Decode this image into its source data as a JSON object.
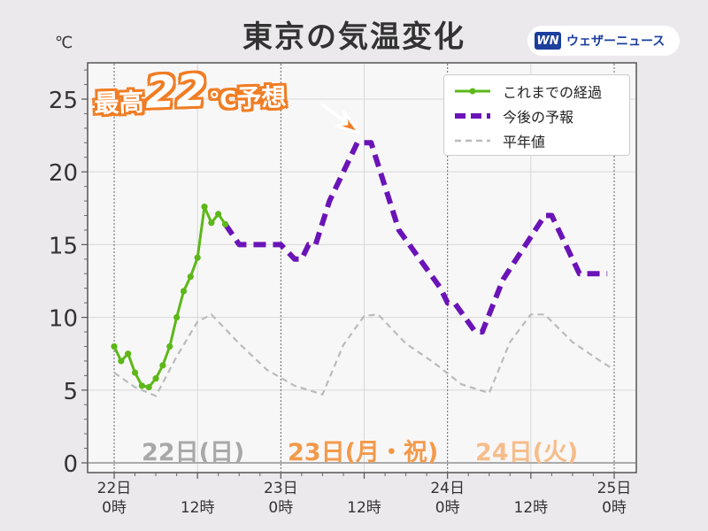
{
  "title": "東京の気温変化",
  "unit": "℃",
  "brand": {
    "logo": "WN",
    "name": "ウェザーニュース"
  },
  "callout": {
    "prefix": "最高",
    "value": "22",
    "unit": "℃",
    "suffix": "予想"
  },
  "legend": [
    {
      "label": "これまでの経過",
      "color": "#5cb818",
      "style": "solid-dots"
    },
    {
      "label": "今後の予報",
      "color": "#6a14b8",
      "style": "thick-dashed"
    },
    {
      "label": "平年値",
      "color": "#bbbbbb",
      "style": "dashed"
    }
  ],
  "day_labels": [
    {
      "text": "22日(日)",
      "color": "#a8a8a8"
    },
    {
      "text": "23日(月・祝)",
      "color": "#f39a4a"
    },
    {
      "text": "24日(火)",
      "color": "#f6bd8a"
    }
  ],
  "chart_data": {
    "type": "line",
    "title": "東京の気温変化",
    "ylabel": "℃",
    "ylim": [
      0,
      27
    ],
    "yticks": [
      0,
      5,
      10,
      15,
      20,
      25
    ],
    "xlim": [
      0,
      72
    ],
    "xticks": [
      {
        "x": 0,
        "label": [
          "22日",
          "0時"
        ]
      },
      {
        "x": 12,
        "label": [
          "12時"
        ]
      },
      {
        "x": 24,
        "label": [
          "23日",
          "0時"
        ]
      },
      {
        "x": 36,
        "label": [
          "12時"
        ]
      },
      {
        "x": 48,
        "label": [
          "24日",
          "0時"
        ]
      },
      {
        "x": 60,
        "label": [
          "12時"
        ]
      },
      {
        "x": 72,
        "label": [
          "25日",
          "0時"
        ]
      }
    ],
    "grid": true,
    "legend_position": "top-right",
    "series": [
      {
        "name": "これまでの経過",
        "color": "#5cb818",
        "x": [
          0,
          1,
          2,
          3,
          4,
          5,
          6,
          7,
          8,
          9,
          10,
          11,
          12,
          13,
          14,
          15,
          16
        ],
        "y": [
          8,
          7,
          7.5,
          6.2,
          5.3,
          5.2,
          5.8,
          6.7,
          8,
          10,
          11.8,
          12.8,
          14.1,
          17.6,
          16.5,
          17.1,
          16.4
        ]
      },
      {
        "name": "今後の予報",
        "color": "#6a14b8",
        "x": [
          16,
          18,
          21,
          24,
          26,
          27,
          28,
          29,
          31,
          35,
          36,
          37,
          41,
          47,
          48,
          49,
          52,
          53,
          56,
          62,
          63,
          66,
          67,
          71
        ],
        "y": [
          16.4,
          15,
          15,
          15,
          14,
          14,
          15,
          15,
          18,
          22,
          22,
          22,
          16,
          12,
          11,
          11,
          9,
          9,
          12.6,
          17,
          17,
          14,
          13,
          13
        ]
      },
      {
        "name": "平年値",
        "color": "#bbbbbb",
        "x": [
          0,
          3,
          6,
          9,
          12,
          14,
          18,
          22,
          26,
          30,
          33,
          36,
          38,
          42,
          46,
          50,
          54,
          57,
          60,
          62,
          66,
          70,
          72
        ],
        "y": [
          6.2,
          5.2,
          4.6,
          7.3,
          9.7,
          10.2,
          8.2,
          6.4,
          5.3,
          4.7,
          8.1,
          10.1,
          10.2,
          8.2,
          6.9,
          5.4,
          4.8,
          8.3,
          10.2,
          10.2,
          8.3,
          7.0,
          6.4
        ]
      }
    ]
  }
}
